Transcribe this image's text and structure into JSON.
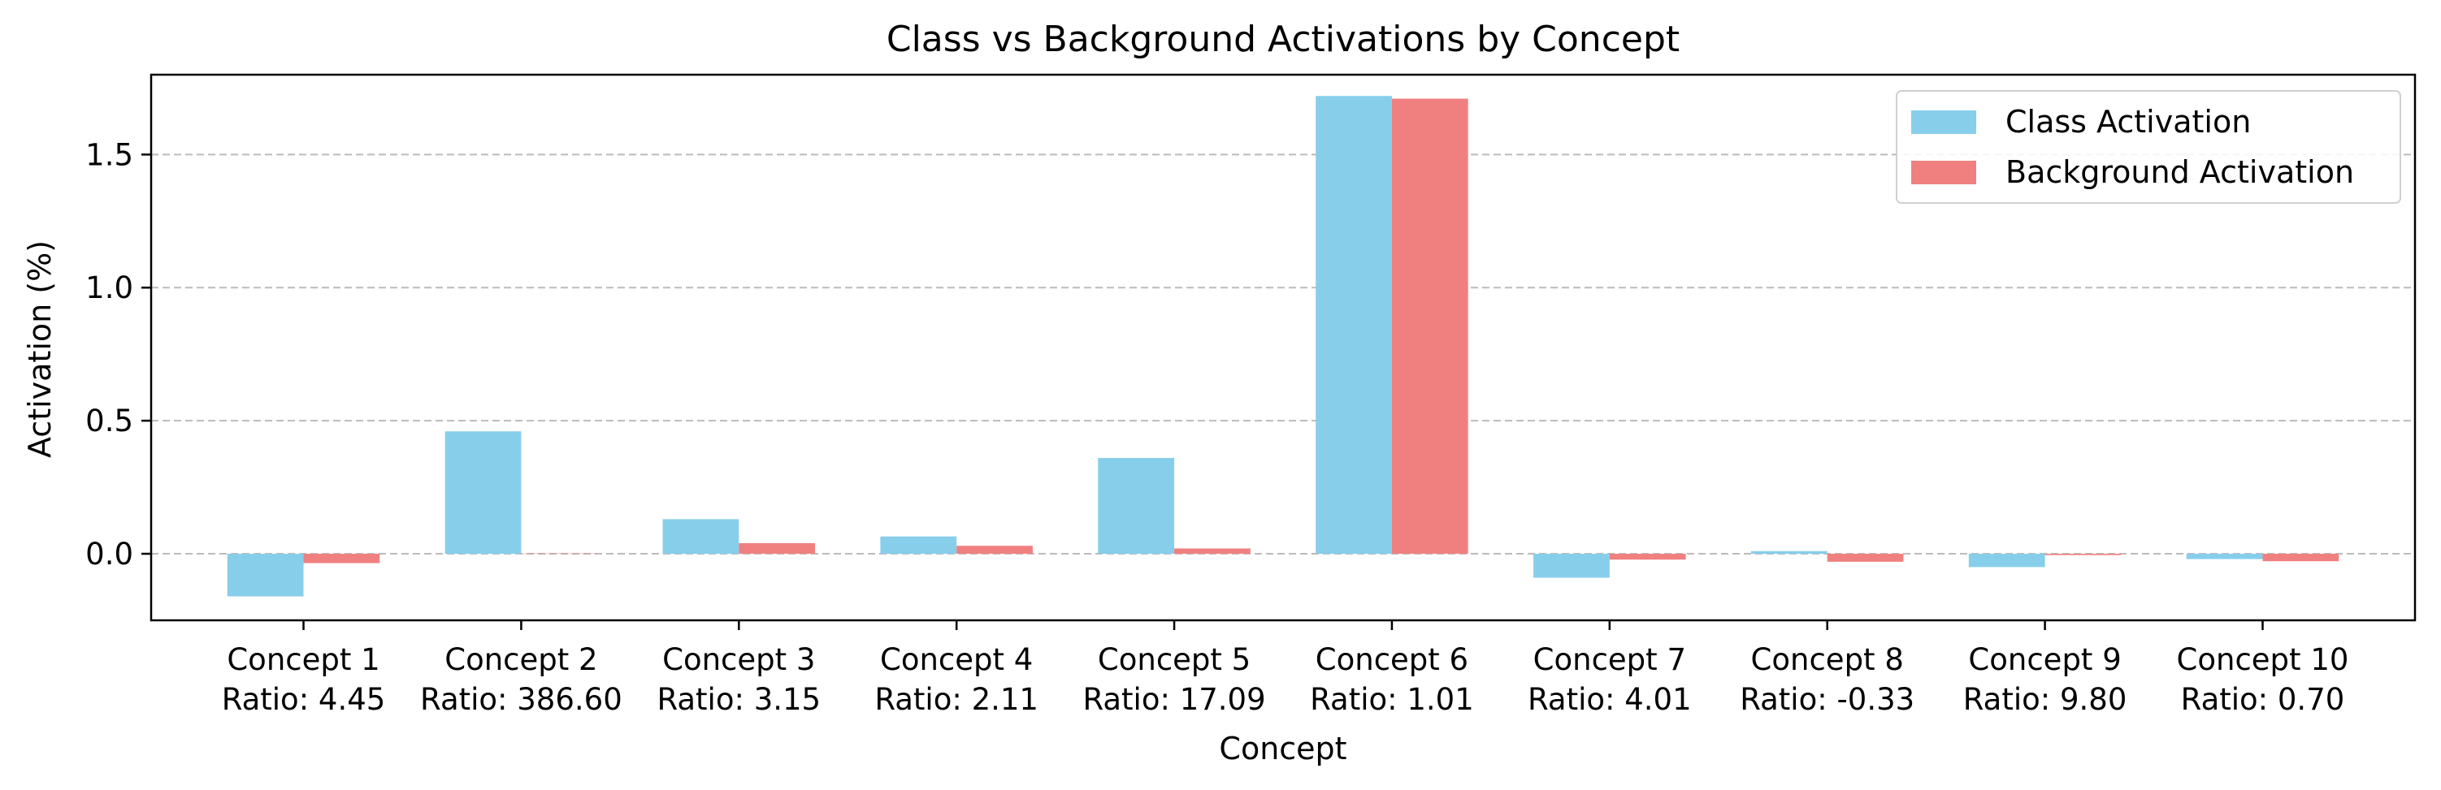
{
  "chart_data": {
    "type": "bar",
    "title": "Class vs Background Activations by Concept",
    "xlabel": "Concept",
    "ylabel": "Activation (%)",
    "categories": [
      "Concept 1",
      "Concept 2",
      "Concept 3",
      "Concept 4",
      "Concept 5",
      "Concept 6",
      "Concept 7",
      "Concept 8",
      "Concept 9",
      "Concept 10"
    ],
    "category_sublabels": [
      "Ratio: 4.45",
      "Ratio: 386.60",
      "Ratio: 3.15",
      "Ratio: 2.11",
      "Ratio: 17.09",
      "Ratio: 1.01",
      "Ratio: 4.01",
      "Ratio: -0.33",
      "Ratio: 9.80",
      "Ratio: 0.70"
    ],
    "series": [
      {
        "name": "Class Activation",
        "color": "#87CEEB",
        "values": [
          -0.16,
          0.46,
          0.13,
          0.065,
          0.36,
          1.72,
          -0.09,
          0.01,
          -0.05,
          -0.02
        ]
      },
      {
        "name": "Background Activation",
        "color": "#F08080",
        "values": [
          -0.035,
          0.001,
          0.04,
          0.03,
          0.02,
          1.71,
          -0.022,
          -0.03,
          -0.005,
          -0.028
        ]
      }
    ],
    "ylim": [
      -0.25,
      1.8
    ],
    "yticks": [
      0.0,
      0.5,
      1.0,
      1.5
    ],
    "ytick_labels": [
      "0.0",
      "0.5",
      "1.0",
      "1.5"
    ],
    "grid": "y-dashed",
    "legend_position": "top-right"
  }
}
